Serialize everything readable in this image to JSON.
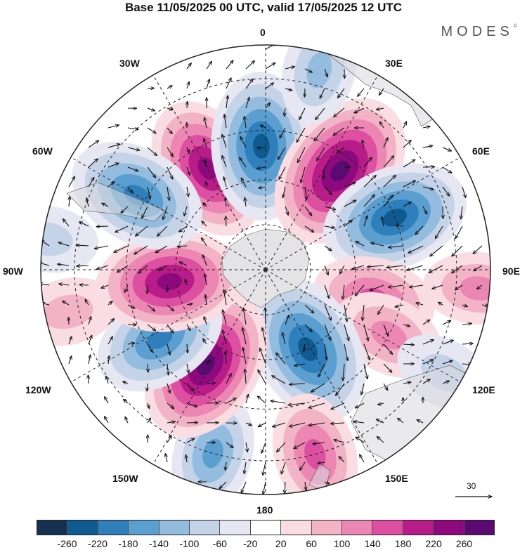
{
  "title": "Base 11/05/2025 00 UTC, valid 17/05/2025 12 UTC",
  "brand": "MODES",
  "brand_mark": "©",
  "longitude_labels": {
    "top": "0",
    "top_right": "30E",
    "right_upper": "60E",
    "right": "90E",
    "right_lower": "120E",
    "bottom_right": "150E",
    "bottom": "180",
    "bottom_left": "150W",
    "left_lower": "120W",
    "left": "90W",
    "left_upper": "60W",
    "top_left": "30W"
  },
  "vector_scale": {
    "value": "30",
    "icon": "arrow-right-icon"
  },
  "colorbar": {
    "colors": [
      "#16304f",
      "#0f5a8f",
      "#2f7fbc",
      "#5a9fcf",
      "#94bcde",
      "#c5d3e8",
      "#e6e7f2",
      "#ffffff",
      "#f9dde2",
      "#f3b3c7",
      "#ec86b2",
      "#dd4fa0",
      "#b81c88",
      "#8c0a7e",
      "#5a0a70"
    ],
    "tick_labels": [
      "-260",
      "-220",
      "-180",
      "-140",
      "-100",
      "-60",
      "-20",
      "20",
      "60",
      "100",
      "140",
      "180",
      "220",
      "260"
    ]
  },
  "anomaly_centers": [
    {
      "sign": "positive",
      "strength": 0.8,
      "lon": 330,
      "rad": 0.52
    },
    {
      "sign": "negative",
      "strength": 0.85,
      "lon": 358,
      "rad": 0.55
    },
    {
      "sign": "positive",
      "strength": 1.0,
      "lon": 37,
      "rad": 0.55
    },
    {
      "sign": "negative",
      "strength": 0.85,
      "lon": 68,
      "rad": 0.62
    },
    {
      "sign": "positive",
      "strength": 0.4,
      "lon": 95,
      "rad": 0.95
    },
    {
      "sign": "positive",
      "strength": 0.55,
      "lon": 105,
      "rad": 0.5
    },
    {
      "sign": "positive",
      "strength": 0.45,
      "lon": 118,
      "rad": 0.62
    },
    {
      "sign": "negative",
      "strength": 0.9,
      "lon": 152,
      "rad": 0.4
    },
    {
      "sign": "negative",
      "strength": 0.3,
      "lon": 120,
      "rad": 0.92
    },
    {
      "sign": "positive",
      "strength": 0.55,
      "lon": 165,
      "rad": 0.85
    },
    {
      "sign": "negative",
      "strength": 0.5,
      "lon": 196,
      "rad": 0.85
    },
    {
      "sign": "positive",
      "strength": 0.95,
      "lon": 212,
      "rad": 0.5
    },
    {
      "sign": "negative",
      "strength": 0.7,
      "lon": 237,
      "rad": 0.56
    },
    {
      "sign": "positive",
      "strength": 0.3,
      "lon": 258,
      "rad": 0.9
    },
    {
      "sign": "positive",
      "strength": 0.85,
      "lon": 263,
      "rad": 0.43
    },
    {
      "sign": "negative",
      "strength": 0.75,
      "lon": 300,
      "rad": 0.66
    },
    {
      "sign": "negative",
      "strength": 0.3,
      "lon": 278,
      "rad": 0.98
    },
    {
      "sign": "negative",
      "strength": 0.4,
      "lon": 15,
      "rad": 0.92
    }
  ]
}
